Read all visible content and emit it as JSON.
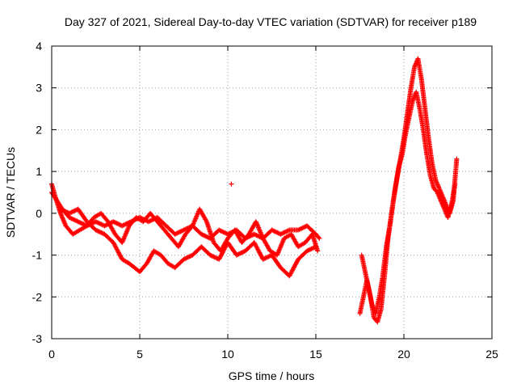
{
  "chart_data": {
    "type": "scatter",
    "title": "Day 327 of 2021, Sidereal Day-to-day VTEC variation (SDTVAR) for receiver p189",
    "xlabel": "GPS time / hours",
    "ylabel": "SDTVAR / TECUs",
    "xlim": [
      0,
      25
    ],
    "ylim": [
      -3,
      4
    ],
    "xticks": [
      "0",
      "5",
      "10",
      "15",
      "20",
      "25"
    ],
    "yticks": [
      "-3",
      "-2",
      "-1",
      "0",
      "1",
      "2",
      "3",
      "4"
    ],
    "grid": true,
    "marker": "+",
    "color": "#ff0000",
    "series": [
      {
        "name": "trace-a",
        "x": [
          0.0,
          0.3,
          0.6,
          1.0,
          1.5,
          2.0,
          2.5,
          3.0,
          3.5,
          4.0,
          4.5,
          5.0,
          5.5,
          6.0,
          6.5,
          7.0,
          7.5,
          8.0,
          8.5,
          9.0,
          9.5,
          10.0,
          10.5,
          11.0,
          11.5,
          12.0,
          12.5,
          13.0,
          13.5,
          14.0,
          14.5,
          15.0,
          15.2
        ],
        "y": [
          0.5,
          0.3,
          0.1,
          -0.1,
          -0.2,
          -0.3,
          -0.2,
          -0.3,
          -0.2,
          -0.3,
          -0.2,
          -0.1,
          -0.2,
          -0.1,
          -0.3,
          -0.5,
          -0.4,
          -0.3,
          -0.5,
          -0.6,
          -0.4,
          -0.5,
          -0.4,
          -0.6,
          -0.5,
          -0.6,
          -0.4,
          -0.5,
          -0.4,
          -0.4,
          -0.3,
          -0.5,
          -0.6
        ]
      },
      {
        "name": "trace-b",
        "x": [
          0.0,
          0.2,
          0.5,
          0.8,
          1.2,
          1.6,
          2.0,
          2.4,
          2.8,
          3.2,
          3.6,
          4.0,
          4.4,
          4.8,
          5.2,
          5.6,
          6.0,
          6.4,
          6.8,
          7.2,
          7.6,
          8.0,
          8.4,
          8.8,
          9.2,
          9.6,
          10.0,
          10.4,
          10.8,
          11.2,
          11.6,
          12.0,
          12.4,
          12.8,
          13.2,
          13.6,
          14.0,
          14.4,
          14.8,
          15.1
        ],
        "y": [
          0.7,
          0.4,
          0.0,
          -0.3,
          -0.5,
          -0.4,
          -0.3,
          -0.1,
          0.0,
          -0.2,
          -0.5,
          -0.7,
          -0.3,
          -0.1,
          -0.2,
          0.0,
          -0.2,
          -0.4,
          -0.6,
          -0.8,
          -0.5,
          -0.3,
          0.1,
          -0.2,
          -0.7,
          -0.9,
          -0.6,
          -0.4,
          -0.7,
          -0.5,
          -0.2,
          -0.6,
          -0.9,
          -1.0,
          -0.6,
          -0.5,
          -0.8,
          -0.7,
          -0.5,
          -0.9
        ]
      },
      {
        "name": "trace-c",
        "x": [
          0.5,
          1.0,
          1.5,
          2.0,
          2.5,
          3.0,
          3.5,
          4.0,
          4.4,
          5.0,
          5.4,
          5.8,
          6.2,
          6.6,
          7.0,
          7.5,
          8.0,
          8.5,
          9.0,
          9.5,
          10.0,
          10.5,
          11.0,
          11.5,
          12.0,
          12.5,
          13.0,
          13.5,
          14.0,
          14.5,
          15.0
        ],
        "y": [
          0.1,
          0.0,
          0.1,
          -0.2,
          -0.4,
          -0.5,
          -0.7,
          -1.1,
          -1.2,
          -1.4,
          -1.2,
          -0.9,
          -1.0,
          -1.2,
          -1.3,
          -1.1,
          -1.0,
          -0.8,
          -1.0,
          -1.1,
          -0.7,
          -1.0,
          -0.9,
          -0.7,
          -1.1,
          -1.0,
          -1.3,
          -1.5,
          -1.1,
          -0.9,
          -0.8
        ]
      },
      {
        "name": "trace-d",
        "x": [
          17.6,
          17.8,
          18.0,
          18.2,
          18.4,
          18.6,
          18.8,
          19.0,
          19.2,
          19.4,
          19.6,
          19.8,
          20.0,
          20.2,
          20.4,
          20.6,
          20.8,
          21.0,
          21.2,
          21.4,
          21.6,
          21.8,
          22.0,
          22.2,
          22.4,
          22.6,
          22.8,
          23.0
        ],
        "y": [
          -1.0,
          -1.4,
          -1.8,
          -2.2,
          -2.4,
          -2.0,
          -1.5,
          -0.8,
          -0.3,
          0.3,
          0.8,
          1.3,
          1.8,
          2.4,
          3.0,
          3.5,
          3.7,
          3.2,
          2.5,
          1.8,
          1.2,
          0.8,
          0.6,
          0.4,
          0.2,
          0.0,
          0.3,
          1.3
        ]
      },
      {
        "name": "trace-e",
        "x": [
          17.5,
          17.7,
          17.9,
          18.1,
          18.3,
          18.5,
          18.7,
          18.9,
          19.1,
          19.3,
          19.5,
          19.7,
          19.9,
          20.1,
          20.3,
          20.5,
          20.7,
          20.9,
          21.1,
          21.3,
          21.5,
          21.7,
          21.9,
          22.1,
          22.3,
          22.5,
          22.7,
          22.9
        ],
        "y": [
          -2.4,
          -2.0,
          -1.6,
          -2.0,
          -2.5,
          -2.6,
          -2.3,
          -1.5,
          -0.6,
          0.0,
          0.6,
          1.1,
          1.4,
          1.9,
          2.3,
          2.7,
          2.9,
          2.5,
          2.0,
          1.4,
          0.9,
          0.6,
          0.5,
          0.3,
          0.1,
          -0.1,
          0.2,
          0.7
        ]
      }
    ],
    "isolated_points": {
      "x": [
        10.2
      ],
      "y": [
        0.7
      ]
    }
  }
}
